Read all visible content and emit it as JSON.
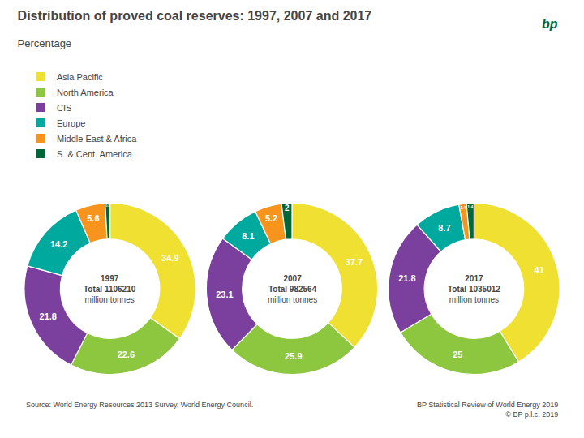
{
  "chart_data": {
    "type": "pie",
    "title": "Distribution of proved coal reserves: 1997, 2007 and 2017",
    "subtitle": "Percentage",
    "categories": [
      "Asia Pacific",
      "North America",
      "CIS",
      "Europe",
      "Middle East & Africa",
      "S. & Cent. America"
    ],
    "colors": [
      "#f0e032",
      "#8dc63f",
      "#7b3f9e",
      "#00a99d",
      "#f7941d",
      "#006838"
    ],
    "series": [
      {
        "name": "1997",
        "values": [
          34.9,
          22.6,
          21.8,
          14.2,
          5.6,
          0.9
        ],
        "annotations": [
          "Total 1106210",
          "million tonnes"
        ]
      },
      {
        "name": "2007",
        "values": [
          37.7,
          25.9,
          23.1,
          8.1,
          5.2,
          2.0
        ],
        "annotations": [
          "Total 982564",
          "million tonnes"
        ]
      },
      {
        "name": "2017",
        "values": [
          41.0,
          25.0,
          21.8,
          8.7,
          1.4,
          1.4
        ],
        "annotations": [
          "Total 1035012",
          "million tonnes"
        ]
      }
    ],
    "data_labels": true,
    "legend": "top left",
    "annotations": [
      "Source: World Energy Resources 2013 Survey. World Energy Council.",
      "BP Statistical Review of World Energy 2019\n© BP p.l.c. 2019",
      "bp"
    ]
  }
}
